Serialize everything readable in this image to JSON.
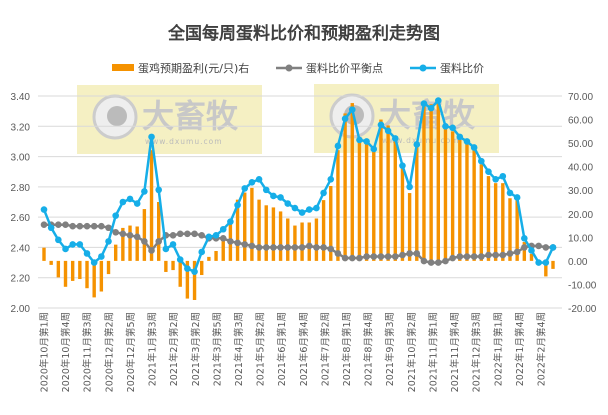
{
  "chart_data": {
    "type": "bar+line",
    "title": "全国每周蛋料比价和预期盈利走势图",
    "legend_position": "top",
    "grid": true,
    "left_axis": {
      "ylim": [
        2.0,
        3.4
      ],
      "ticks": [
        "2.00",
        "2.20",
        "2.40",
        "2.60",
        "2.80",
        "3.00",
        "3.20",
        "3.40"
      ]
    },
    "right_axis": {
      "ylim": [
        -20,
        70
      ],
      "ticks": [
        "-20.00",
        "-10.00",
        "0.00",
        "10.00",
        "20.00",
        "30.00",
        "40.00",
        "50.00",
        "60.00",
        "70.00"
      ]
    },
    "x_tick_labels": [
      "2020年10月第1周",
      "2020年10月第4周",
      "2020年11月第3周",
      "2020年12月第2周",
      "2020年12月第5周",
      "2021年1月第3周",
      "2021年2月第2周",
      "2021年3月第2周",
      "2021年3月第5周",
      "2021年4月第3周",
      "2021年5月第2周",
      "2021年6月第1周",
      "2021年6月第4周",
      "2021年7月第2周",
      "2021年8月第1周",
      "2021年8月第4周",
      "2021年9月第3周",
      "2021年10月第2周",
      "2021年11月第1周",
      "2021年11月第4周",
      "2021年12月第3周",
      "2022年1月第1周",
      "2022年1月第4周",
      "2022年2月第4周"
    ],
    "series": [
      {
        "name": "蛋鸡预期盈利(元/只)右",
        "type": "bar",
        "axis": "right",
        "color": "#F59200",
        "values": [
          5.6,
          -1.7,
          -7,
          -11,
          -8.5,
          -7.7,
          -11.6,
          -15.5,
          -13,
          -5.6,
          6.9,
          14,
          15,
          14.6,
          22,
          47,
          25,
          -4.7,
          -3.9,
          -11,
          -16,
          -16.6,
          -6,
          1.7,
          4.2,
          9.4,
          16.6,
          26,
          29,
          31,
          26,
          23.6,
          22.7,
          21,
          18,
          15,
          16.3,
          16.3,
          18,
          25.8,
          31.8,
          47,
          62.6,
          67,
          51,
          50,
          47,
          60,
          57.5,
          53,
          39.5,
          28.8,
          49,
          67,
          66.5,
          68,
          56,
          55,
          52,
          51,
          48,
          41,
          36,
          33,
          33,
          26.6,
          25.8,
          8,
          3,
          -1.3,
          -6.6,
          -3.4
        ]
      },
      {
        "name": "蛋料比价平衡点",
        "type": "line",
        "axis": "left",
        "color": "#808080",
        "values": [
          2.55,
          2.55,
          2.55,
          2.55,
          2.54,
          2.54,
          2.54,
          2.54,
          2.54,
          2.53,
          2.5,
          2.49,
          2.48,
          2.47,
          2.44,
          2.38,
          2.44,
          2.48,
          2.48,
          2.49,
          2.49,
          2.49,
          2.48,
          2.46,
          2.46,
          2.46,
          2.44,
          2.43,
          2.42,
          2.41,
          2.4,
          2.4,
          2.4,
          2.4,
          2.4,
          2.4,
          2.4,
          2.41,
          2.4,
          2.4,
          2.39,
          2.36,
          2.33,
          2.33,
          2.33,
          2.34,
          2.34,
          2.34,
          2.34,
          2.34,
          2.35,
          2.36,
          2.36,
          2.31,
          2.3,
          2.3,
          2.31,
          2.33,
          2.34,
          2.34,
          2.34,
          2.34,
          2.35,
          2.35,
          2.35,
          2.36,
          2.37,
          2.4,
          2.41,
          2.41,
          2.4,
          2.4
        ]
      },
      {
        "name": "蛋料比价",
        "type": "line",
        "axis": "left",
        "color": "#16AEE8",
        "values": [
          2.65,
          2.53,
          2.45,
          2.39,
          2.42,
          2.42,
          2.36,
          2.3,
          2.34,
          2.44,
          2.61,
          2.7,
          2.72,
          2.69,
          2.77,
          3.13,
          2.78,
          2.39,
          2.42,
          2.32,
          2.26,
          2.24,
          2.37,
          2.47,
          2.48,
          2.52,
          2.57,
          2.68,
          2.79,
          2.83,
          2.85,
          2.78,
          2.74,
          2.73,
          2.69,
          2.66,
          2.63,
          2.65,
          2.66,
          2.76,
          2.85,
          3.07,
          3.25,
          3.31,
          3.11,
          3.1,
          3.05,
          3.21,
          3.17,
          3.12,
          2.94,
          2.8,
          3.08,
          3.35,
          3.32,
          3.37,
          3.2,
          3.19,
          3.13,
          3.1,
          3.06,
          2.97,
          2.9,
          2.85,
          2.87,
          2.76,
          2.73,
          2.46,
          2.38,
          2.3,
          2.3,
          2.4
        ]
      }
    ]
  },
  "watermark": {
    "brand": "大畜牧",
    "url": "www.dxumu.com"
  }
}
